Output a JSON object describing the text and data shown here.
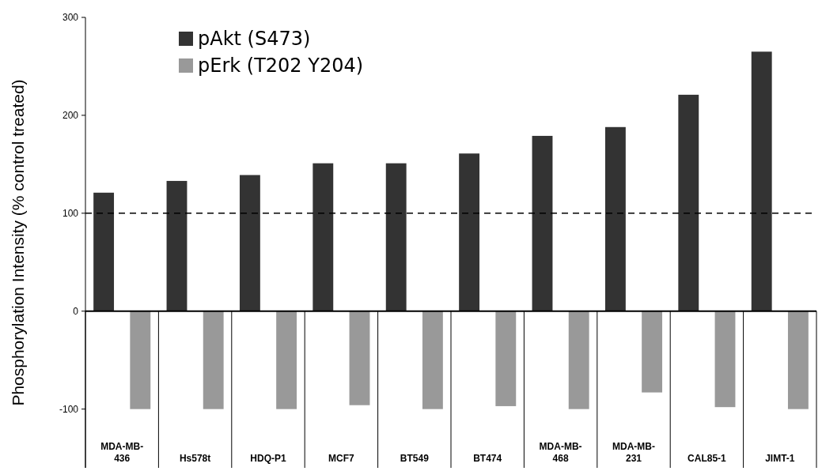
{
  "chart_data": {
    "type": "bar",
    "ylabel": "Phosphorylation Intensity (% control treated)",
    "categories": [
      "MDA-MB-436",
      "Hs578t",
      "HDQ-P1",
      "MCF7",
      "BT549",
      "BT474",
      "MDA-MB-468",
      "MDA-MB-231",
      "CAL85-1",
      "JIMT-1"
    ],
    "series": [
      {
        "name": "pAkt (S473)",
        "color": "#333333",
        "values": [
          121,
          133,
          139,
          151,
          151,
          161,
          179,
          188,
          221,
          265
        ]
      },
      {
        "name": "pErk (T202 Y204)",
        "color": "#999999",
        "values": [
          -100,
          -100,
          -100,
          -96,
          -100,
          -97,
          -100,
          -83,
          -98,
          -100
        ]
      }
    ],
    "ylim": [
      -160,
      300
    ],
    "yticks": [
      -100,
      0,
      100,
      200,
      300
    ],
    "ref_lines": [
      {
        "axis": "y",
        "value": 100,
        "color": "#000000",
        "line_style": "dashed"
      }
    ],
    "legend": "top left"
  }
}
